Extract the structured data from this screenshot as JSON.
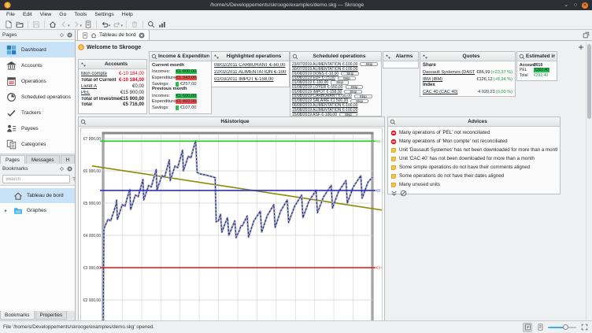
{
  "window": {
    "title": "/home/s/Developpements/skrooge/examples/demo.skg — Skrooge",
    "menu": [
      {
        "label": "File"
      },
      {
        "label": "Edit"
      },
      {
        "label": "View"
      },
      {
        "label": "Go"
      },
      {
        "label": "Tools"
      },
      {
        "label": "Settings"
      },
      {
        "label": "Help"
      }
    ]
  },
  "left_dock": {
    "pages_title": "Pages",
    "pages": [
      {
        "label": "Dashboard",
        "icon": "dashboard",
        "selected": "selected"
      },
      {
        "label": "Accounts",
        "icon": "bank"
      },
      {
        "label": "Operations",
        "icon": "operations"
      },
      {
        "label": "Scheduled operations",
        "icon": "scheduled"
      },
      {
        "label": "Trackers",
        "icon": "trackers"
      },
      {
        "label": "Payees",
        "icon": "payees"
      },
      {
        "label": "Categories",
        "icon": "categories"
      }
    ],
    "dock_tabs": [
      {
        "label": "Pages",
        "selected": "selected"
      },
      {
        "label": "Messages"
      },
      {
        "label": "H"
      }
    ],
    "bookmarks_title": "Bookmarks",
    "search_placeholder": "Search",
    "bookmarks": [
      {
        "label": "Tableau de bord",
        "icon": "home",
        "selected": "selected"
      },
      {
        "label": "Graphes",
        "icon": "folder",
        "expander": "▸"
      }
    ],
    "bottom_tabs": [
      {
        "label": "Bookmarks",
        "selected": "selected"
      },
      {
        "label": "Properties"
      }
    ]
  },
  "main_tab": {
    "label": "Tableau de bord"
  },
  "dashboard": {
    "welcome": "Welcome to Skrooge",
    "accounts": {
      "title": "Accounts",
      "rows": [
        {
          "label": "Mon compte",
          "value": "€-10 184,00",
          "lcls": "link",
          "vcls": "neg"
        },
        {
          "label": "Total of Current",
          "value": "€-10 184,00",
          "lcls": "bold",
          "vcls": "neg bold"
        },
        {
          "label": "Livret A",
          "value": "€0,00",
          "lcls": "link"
        },
        {
          "label": "PEL",
          "value": "€15 900,00",
          "lcls": "link"
        },
        {
          "label": "Total of Investment",
          "value": "€15 900,00",
          "lcls": "bold",
          "vcls": "bold"
        },
        {
          "label": "Total",
          "value": "€5 716,00",
          "lcls": "bold",
          "vcls": "bold"
        }
      ]
    },
    "income_expenditure": {
      "title": "Income & Expenditure",
      "rows": [
        {
          "heading": "Current month"
        },
        {
          "label": "Incomes:",
          "value": "€1 600,00",
          "badge": "b-green"
        },
        {
          "label": "Expenditures:",
          "value": "€1 343,00",
          "badge": "b-red"
        },
        {
          "label": "Savings:",
          "value": "€257,00",
          "badge": "b-chip"
        },
        {
          "heading": "Previous month"
        },
        {
          "label": "Incomes:",
          "value": "€1 600,00",
          "badge": "b-green"
        },
        {
          "label": "Expenditures:",
          "value": "€1 493,00",
          "badge": "b-red"
        },
        {
          "label": "Savings:",
          "value": "€107,00",
          "badge": "b-chip"
        }
      ]
    },
    "highlighted": {
      "title": "Highlighted operations",
      "rows": [
        {
          "text": "08/02/2011 CARBURANT €-50,00"
        },
        {
          "text": "22/02/2011 ALIMENTATION €-100,00"
        },
        {
          "text": "01/03/2011 IMPOT €-158,00"
        }
      ]
    },
    "scheduled": {
      "title": "Scheduled operations",
      "rows": [
        {
          "text": "23/07/2019 ALIMENTATION €-100,00",
          "skip": "Skip"
        },
        {
          "text": "30/07/2019 ALIMENTATION €-100,00"
        },
        {
          "text": "01/08/2019 DONS €-10,00",
          "skip": "Skip"
        },
        {
          "text": "01/08/2019 EDF €-75,00",
          "skip": "Skip"
        },
        {
          "text": "01/08/2019 €-100,00",
          "skip": "Skip"
        },
        {
          "text": "01/08/2019 LOYER €-550,00",
          "skip": "Skip"
        },
        {
          "text": "01/08/2019 IMPOT €-158,00",
          "skip": "Skip"
        },
        {
          "text": "01/08/2019 CARBURANT €-50,00",
          "skip": "Skip"
        },
        {
          "text": "01/08/2019 SALAIRE €1 500,00",
          "skip": "Skip"
        },
        {
          "text": "06/08/2019 ALIMENTATION €-100,00"
        },
        {
          "text": "15/08/2019 ALIMENTATION €-100,00"
        },
        {
          "text": "15/08/2019 ASF €-100,00",
          "skip": "Skip"
        }
      ]
    },
    "alarms": {
      "title": "Alarms"
    },
    "quotes": {
      "title": "Quotes",
      "rows": [
        {
          "heading": "Share"
        },
        {
          "name": "Dassault Systemes (DASTY)",
          "value": "€86,99",
          "change": "(+23,37 %)"
        },
        {
          "name": "IBM (IBM)",
          "value": "€126,12",
          "change": "(+8,34 %)"
        },
        {
          "heading": "Index"
        },
        {
          "name": "CAC 40 (CAC 40)",
          "value": "4 020,21",
          "change": "(0,00 %)"
        }
      ]
    },
    "estimated_interest": {
      "title": "Estimated interest",
      "col1": "Account",
      "col2": "2019",
      "rows": [
        {
          "label": "PEL",
          "value": "€392,40",
          "vcls": "green-badge"
        },
        {
          "label": "Total",
          "value": "€392,40",
          "vcls": "green-text"
        }
      ]
    },
    "chart": {
      "title": "H&istorique",
      "type": "line",
      "y_max": 7000,
      "y_step": 1000,
      "y_ticks": [
        "€7 000,00",
        "€6 000,00",
        "€5 000,00",
        "€4 000,00",
        "€3 000,00",
        "€2 000,00"
      ],
      "ref_lines": [
        {
          "value": 6920,
          "label": "€6 920,00",
          "color": "#1ad11a"
        },
        {
          "value": 5393.14,
          "label": "€5 393,14",
          "color": "#2a2ae0"
        },
        {
          "value": 3000,
          "label": "€3 000,00",
          "color": "#e01414"
        }
      ],
      "trend": {
        "from": 6100,
        "to": 4830,
        "color": "#8b8b00"
      },
      "series": [
        [
          0.0,
          900
        ],
        [
          0.003,
          4200
        ],
        [
          0.008,
          4300
        ],
        [
          0.018,
          4500
        ],
        [
          0.028,
          4450
        ],
        [
          0.038,
          4700
        ],
        [
          0.048,
          4950
        ],
        [
          0.05,
          5100
        ],
        [
          0.053,
          4500
        ],
        [
          0.061,
          4700
        ],
        [
          0.071,
          4950
        ],
        [
          0.081,
          4900
        ],
        [
          0.091,
          5200
        ],
        [
          0.099,
          5420
        ],
        [
          0.102,
          4800
        ],
        [
          0.11,
          5000
        ],
        [
          0.12,
          5250
        ],
        [
          0.13,
          5200
        ],
        [
          0.14,
          5500
        ],
        [
          0.148,
          5730
        ],
        [
          0.151,
          5100
        ],
        [
          0.159,
          5300
        ],
        [
          0.169,
          5550
        ],
        [
          0.179,
          5500
        ],
        [
          0.189,
          5800
        ],
        [
          0.197,
          6040
        ],
        [
          0.2,
          5400
        ],
        [
          0.208,
          5600
        ],
        [
          0.218,
          5850
        ],
        [
          0.228,
          5800
        ],
        [
          0.238,
          6100
        ],
        [
          0.246,
          6340
        ],
        [
          0.249,
          5700
        ],
        [
          0.257,
          5900
        ],
        [
          0.267,
          6150
        ],
        [
          0.277,
          6100
        ],
        [
          0.287,
          6400
        ],
        [
          0.295,
          6640
        ],
        [
          0.298,
          6000
        ],
        [
          0.306,
          6200
        ],
        [
          0.316,
          6450
        ],
        [
          0.326,
          6400
        ],
        [
          0.336,
          6720
        ],
        [
          0.344,
          6930
        ],
        [
          0.349,
          5950
        ],
        [
          0.362,
          5900
        ],
        [
          0.376,
          5880
        ],
        [
          0.39,
          5850
        ],
        [
          0.404,
          5820
        ],
        [
          0.416,
          5790
        ],
        [
          0.42,
          4420
        ],
        [
          0.428,
          4450
        ],
        [
          0.436,
          4650
        ],
        [
          0.441,
          4100
        ],
        [
          0.452,
          4350
        ],
        [
          0.462,
          4550
        ],
        [
          0.467,
          4000
        ],
        [
          0.479,
          4250
        ],
        [
          0.489,
          4450
        ],
        [
          0.494,
          3930
        ],
        [
          0.506,
          4150
        ],
        [
          0.512,
          4300
        ],
        [
          0.517,
          4300
        ],
        [
          0.535,
          4600
        ],
        [
          0.54,
          3950
        ],
        [
          0.56,
          4450
        ],
        [
          0.584,
          4750
        ],
        [
          0.589,
          4100
        ],
        [
          0.609,
          4600
        ],
        [
          0.634,
          4950
        ],
        [
          0.639,
          4250
        ],
        [
          0.659,
          4750
        ],
        [
          0.684,
          5100
        ],
        [
          0.689,
          4400
        ],
        [
          0.711,
          4900
        ],
        [
          0.737,
          5250
        ],
        [
          0.742,
          4550
        ],
        [
          0.764,
          5050
        ],
        [
          0.791,
          5400
        ],
        [
          0.796,
          4700
        ],
        [
          0.819,
          5200
        ],
        [
          0.847,
          5550
        ],
        [
          0.852,
          4850
        ],
        [
          0.874,
          5350
        ],
        [
          0.902,
          5700
        ],
        [
          0.907,
          5000
        ],
        [
          0.929,
          5500
        ],
        [
          0.957,
          5850
        ],
        [
          0.962,
          5150
        ],
        [
          0.984,
          5650
        ],
        [
          1.0,
          5800
        ]
      ]
    },
    "advices": {
      "title": "Advices",
      "items": [
        {
          "icon": "advice-high",
          "text": "Many operations of 'PEL' not reconciliated"
        },
        {
          "icon": "advice-high",
          "text": "Many operations of 'Mon compte' not reconciliated"
        },
        {
          "icon": "advice-medium",
          "text": "Unit 'Dassault Systemes' has not been downloaded for more than a month"
        },
        {
          "icon": "advice-medium",
          "text": "Unit 'CAC 40' has not been downloaded for more than a month"
        },
        {
          "icon": "advice-medium",
          "text": "Some simple operations do not have their comments aligned"
        },
        {
          "icon": "advice-medium",
          "text": "Some operations do not have their dates aligned"
        },
        {
          "icon": "advice-medium",
          "text": "Many unused units"
        }
      ]
    }
  },
  "status": {
    "text": "File '/home/s/Developpements/skrooge/examples/demo.skg' opened."
  }
}
